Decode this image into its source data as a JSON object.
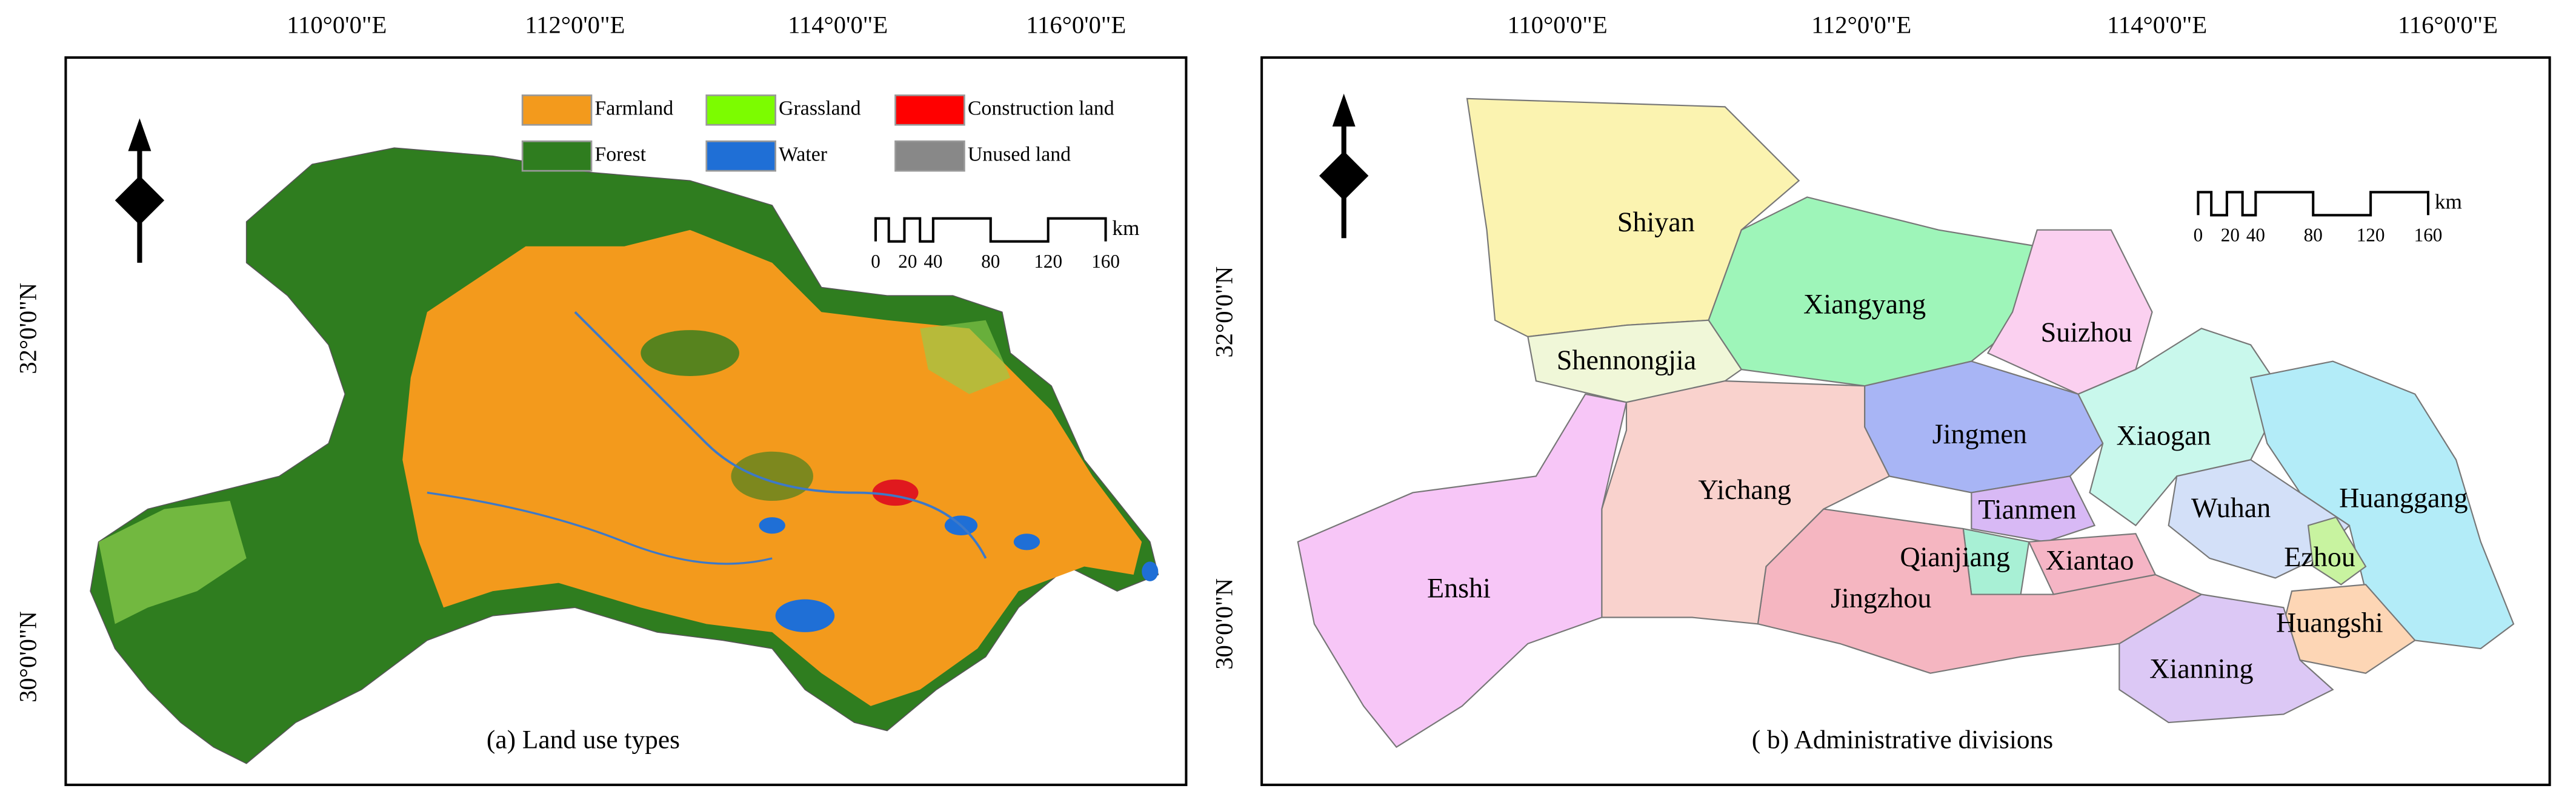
{
  "panels": [
    {
      "caption": "(a) Land use types",
      "lon_labels": [
        "110°0'0\"E",
        "112°0'0\"E",
        "114°0'0\"E",
        "116°0'0\"E"
      ],
      "lat_labels": [
        "32°0'0\"N",
        "30°0'0\"N"
      ],
      "legend": [
        "Farmland",
        "Grassland",
        "Construction land",
        "Forest",
        "Water",
        "Unused land"
      ],
      "scale_labels": [
        "0",
        "20",
        "40",
        "80",
        "120",
        "160"
      ],
      "scale_unit": "km",
      "north": "N"
    },
    {
      "caption": "( b) Administrative divisions",
      "lon_labels": [
        "110°0'0\"E",
        "112°0'0\"E",
        "114°0'0\"E",
        "116°0'0\"E"
      ],
      "lat_labels": [
        "32°0'0\"N",
        "30°0'0\"N"
      ],
      "scale_labels": [
        "0",
        "20",
        "40",
        "80",
        "120",
        "160"
      ],
      "scale_unit": "km",
      "north": "N",
      "regions": [
        "Shiyan",
        "Xiangyang",
        "Suizhou",
        "Shennongjia",
        "Jingmen",
        "Xiaogan",
        "Huanggang",
        "Wuhan",
        "Ezhou",
        "Huangshi",
        "Xianning",
        "Tianmen",
        "Qianjiang",
        "Xiantao",
        "Jingzhou",
        "Yichang",
        "Enshi"
      ]
    }
  ]
}
